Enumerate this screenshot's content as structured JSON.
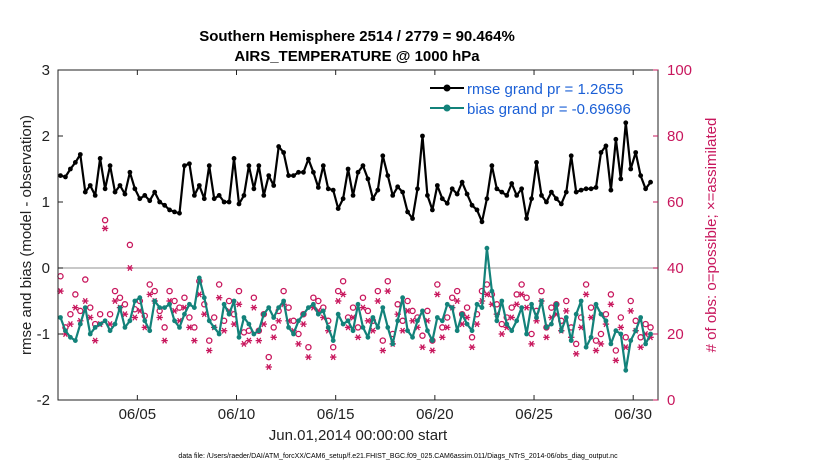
{
  "chart_data": {
    "type": "line",
    "title": "Southern Hemisphere 2514 / 2779 = 90.464%",
    "subtitle": "AIRS_TEMPERATURE @ 1000 hPa",
    "xlabel": "Jun.01,2014 00:00:00 start",
    "ylabel": "rmse and bias (model - observation)",
    "y2label": "# of obs: o=possible; ×=assimilated",
    "footnote": "data file: /Users/raeder/DAI/ATM_forcXX/CAM6_setup/f.e21.FHIST_BGC.f09_025.CAM6assim.011/Diags_NTrS_2014-06/obs_diag_output.nc",
    "xlim": [
      1.0,
      31.25
    ],
    "ylim": [
      -2,
      3
    ],
    "y2lim": [
      0,
      100
    ],
    "xticks": [
      5,
      10,
      15,
      20,
      25,
      30
    ],
    "xtick_labels": [
      "06/05",
      "06/10",
      "06/15",
      "06/20",
      "06/25",
      "06/30"
    ],
    "yticks": [
      -2,
      -1,
      0,
      1,
      2,
      3
    ],
    "ytick_labels": [
      "-2",
      "-1",
      "0",
      "1",
      "2",
      "3"
    ],
    "y2ticks": [
      0,
      20,
      40,
      60,
      80,
      100
    ],
    "y2tick_labels": [
      "0",
      "20",
      "40",
      "60",
      "80",
      "100"
    ],
    "zero_line": 0,
    "grid": false,
    "legend_position": "top-right",
    "series": [
      {
        "name": "rmse grand pr = 1.2655",
        "color": "#000000",
        "marker": "filled-circle",
        "axis": "left",
        "x": [
          1.125,
          1.375,
          1.625,
          1.875,
          2.125,
          2.375,
          2.625,
          2.875,
          3.125,
          3.375,
          3.625,
          3.875,
          4.125,
          4.375,
          4.625,
          4.875,
          5.125,
          5.375,
          5.625,
          5.875,
          6.125,
          6.375,
          6.625,
          6.875,
          7.125,
          7.375,
          7.625,
          7.875,
          8.125,
          8.375,
          8.625,
          8.875,
          9.125,
          9.375,
          9.625,
          9.875,
          10.125,
          10.375,
          10.625,
          10.875,
          11.125,
          11.375,
          11.625,
          11.875,
          12.125,
          12.375,
          12.625,
          12.875,
          13.125,
          13.375,
          13.625,
          13.875,
          14.125,
          14.375,
          14.625,
          14.875,
          15.125,
          15.375,
          15.625,
          15.875,
          16.125,
          16.375,
          16.625,
          16.875,
          17.125,
          17.375,
          17.625,
          17.875,
          18.125,
          18.375,
          18.625,
          18.875,
          19.125,
          19.375,
          19.625,
          19.875,
          20.125,
          20.375,
          20.625,
          20.875,
          21.125,
          21.375,
          21.625,
          21.875,
          22.125,
          22.375,
          22.625,
          22.875,
          23.125,
          23.375,
          23.625,
          23.875,
          24.125,
          24.375,
          24.625,
          24.875,
          25.125,
          25.375,
          25.625,
          25.875,
          26.125,
          26.375,
          26.625,
          26.875,
          27.125,
          27.375,
          27.625,
          27.875,
          28.125,
          28.375,
          28.625,
          28.875,
          29.125,
          29.375,
          29.625,
          29.875,
          30.125,
          30.375,
          30.625,
          30.875
        ],
        "values": [
          1.4,
          1.38,
          1.5,
          1.6,
          1.72,
          1.15,
          1.25,
          1.1,
          1.66,
          1.2,
          1.55,
          1.15,
          1.25,
          1.12,
          1.45,
          1.2,
          1.05,
          1.1,
          1.02,
          1.15,
          1.0,
          0.95,
          0.88,
          0.85,
          0.83,
          1.55,
          1.58,
          1.1,
          1.25,
          1.05,
          1.55,
          1.05,
          1.1,
          1.0,
          1.0,
          1.66,
          0.97,
          1.1,
          1.55,
          1.2,
          1.55,
          1.1,
          1.4,
          1.25,
          1.84,
          1.75,
          1.4,
          1.4,
          1.45,
          1.45,
          1.65,
          1.45,
          1.22,
          1.55,
          1.2,
          1.18,
          0.9,
          1.05,
          1.5,
          1.1,
          1.45,
          1.55,
          1.35,
          1.05,
          1.18,
          1.7,
          1.4,
          1.1,
          1.23,
          1.15,
          0.85,
          0.75,
          1.2,
          2.0,
          1.1,
          0.88,
          1.25,
          1.05,
          0.98,
          1.2,
          1.12,
          1.3,
          1.12,
          0.95,
          0.88,
          0.7,
          1.05,
          1.55,
          1.2,
          1.15,
          1.1,
          1.28,
          1.1,
          1.2,
          0.75,
          1.05,
          1.6,
          1.1,
          1.0,
          1.15,
          1.05,
          0.97,
          1.15,
          1.7,
          1.15,
          1.18,
          1.2,
          1.2,
          1.22,
          1.75,
          1.85,
          1.18,
          1.95,
          1.35,
          2.2,
          1.5,
          1.75,
          1.4,
          1.2,
          1.3
        ]
      },
      {
        "name": "bias grand pr = -0.69696",
        "color": "#13827a",
        "marker": "filled-circle",
        "axis": "left",
        "x": [
          1.125,
          1.375,
          1.625,
          1.875,
          2.125,
          2.375,
          2.625,
          2.875,
          3.125,
          3.375,
          3.625,
          3.875,
          4.125,
          4.375,
          4.625,
          4.875,
          5.125,
          5.375,
          5.625,
          5.875,
          6.125,
          6.375,
          6.625,
          6.875,
          7.125,
          7.375,
          7.625,
          7.875,
          8.125,
          8.375,
          8.625,
          8.875,
          9.125,
          9.375,
          9.625,
          9.875,
          10.125,
          10.375,
          10.625,
          10.875,
          11.125,
          11.375,
          11.625,
          11.875,
          12.125,
          12.375,
          12.625,
          12.875,
          13.125,
          13.375,
          13.625,
          13.875,
          14.125,
          14.375,
          14.625,
          14.875,
          15.125,
          15.375,
          15.625,
          15.875,
          16.125,
          16.375,
          16.625,
          16.875,
          17.125,
          17.375,
          17.625,
          17.875,
          18.125,
          18.375,
          18.625,
          18.875,
          19.125,
          19.375,
          19.625,
          19.875,
          20.125,
          20.375,
          20.625,
          20.875,
          21.125,
          21.375,
          21.625,
          21.875,
          22.125,
          22.375,
          22.625,
          22.875,
          23.125,
          23.375,
          23.625,
          23.875,
          24.125,
          24.375,
          24.625,
          24.875,
          25.125,
          25.375,
          25.625,
          25.875,
          26.125,
          26.375,
          26.625,
          26.875,
          27.125,
          27.375,
          27.625,
          27.875,
          28.125,
          28.375,
          28.625,
          28.875,
          29.125,
          29.375,
          29.625,
          29.875,
          30.125,
          30.375,
          30.625,
          30.875
        ],
        "values": [
          -0.75,
          -0.95,
          -1.05,
          -1.1,
          -0.85,
          -0.6,
          -1.0,
          -0.9,
          -0.85,
          -0.8,
          -0.95,
          -0.85,
          -0.6,
          -0.9,
          -0.8,
          -0.5,
          -0.45,
          -0.8,
          -0.95,
          -0.5,
          -0.6,
          -0.6,
          -0.55,
          -0.8,
          -0.9,
          -0.7,
          -0.55,
          -0.6,
          -0.15,
          -0.45,
          -0.8,
          -0.9,
          -1.0,
          -0.55,
          -0.7,
          -0.5,
          -1.05,
          -0.75,
          -0.85,
          -1.0,
          -0.95,
          -0.7,
          -0.6,
          -0.75,
          -0.6,
          -0.5,
          -0.9,
          -1.0,
          -0.8,
          -0.7,
          -0.6,
          -0.55,
          -0.7,
          -0.65,
          -0.9,
          -1.1,
          -0.7,
          -0.85,
          -0.8,
          -0.95,
          -0.55,
          -0.9,
          -1.05,
          -0.75,
          -0.9,
          -0.6,
          -0.9,
          -1.15,
          -0.8,
          -0.45,
          -0.95,
          -1.05,
          -0.8,
          -0.65,
          -0.95,
          -1.1,
          -0.75,
          -0.8,
          -0.55,
          -0.6,
          -0.95,
          -0.7,
          -0.85,
          -0.95,
          -0.55,
          -0.6,
          0.3,
          -0.35,
          -0.8,
          -0.5,
          -0.85,
          -0.95,
          -0.8,
          -0.6,
          -1.0,
          -0.55,
          -0.75,
          -0.5,
          -0.9,
          -0.85,
          -0.55,
          -0.95,
          -0.75,
          -1.1,
          -0.7,
          -0.5,
          -1.2,
          -1.05,
          -0.55,
          -0.7,
          -0.8,
          -1.15,
          -0.95,
          -1.0,
          -1.55,
          -1.1,
          -0.95,
          -0.75,
          -1.15,
          -1.0
        ]
      },
      {
        "name": "possible observations",
        "color": "#c8175d",
        "marker": "open-circle",
        "axis": "right",
        "x": [
          1.125,
          1.375,
          1.625,
          1.875,
          2.125,
          2.375,
          2.625,
          2.875,
          3.125,
          3.375,
          3.625,
          3.875,
          4.125,
          4.375,
          4.625,
          4.875,
          5.125,
          5.375,
          5.625,
          5.875,
          6.125,
          6.375,
          6.625,
          6.875,
          7.125,
          7.375,
          7.625,
          7.875,
          8.125,
          8.375,
          8.625,
          8.875,
          9.125,
          9.375,
          9.625,
          9.875,
          10.125,
          10.375,
          10.625,
          10.875,
          11.125,
          11.375,
          11.625,
          11.875,
          12.125,
          12.375,
          12.625,
          12.875,
          13.125,
          13.375,
          13.625,
          13.875,
          14.125,
          14.375,
          14.625,
          14.875,
          15.125,
          15.375,
          15.625,
          15.875,
          16.125,
          16.375,
          16.625,
          16.875,
          17.125,
          17.375,
          17.625,
          17.875,
          18.125,
          18.375,
          18.625,
          18.875,
          19.125,
          19.375,
          19.625,
          19.875,
          20.125,
          20.375,
          20.625,
          20.875,
          21.125,
          21.375,
          21.625,
          21.875,
          22.125,
          22.375,
          22.625,
          22.875,
          23.125,
          23.375,
          23.625,
          23.875,
          24.125,
          24.375,
          24.625,
          24.875,
          25.125,
          25.375,
          25.625,
          25.875,
          26.125,
          26.375,
          26.625,
          26.875,
          27.125,
          27.375,
          27.625,
          27.875,
          28.125,
          28.375,
          28.625,
          28.875,
          29.125,
          29.375,
          29.625,
          29.875,
          30.125,
          30.375,
          30.625,
          30.875
        ],
        "values": [
          37.5,
          22,
          26,
          32,
          27,
          36.5,
          28,
          23,
          26,
          54.5,
          26,
          33,
          31,
          29,
          47,
          27.5,
          30,
          25.5,
          35,
          33,
          27,
          22,
          33,
          30,
          28,
          31,
          25,
          22,
          36,
          29,
          18,
          25,
          35,
          24,
          30,
          26,
          33,
          20.5,
          21,
          31,
          21,
          26,
          13,
          22,
          27,
          33,
          28,
          24,
          20,
          26,
          16,
          31,
          30,
          28,
          24,
          16,
          33,
          36,
          25,
          28,
          22,
          31,
          27,
          24,
          33,
          18,
          36,
          20,
          29,
          24,
          30,
          27,
          25,
          19.5,
          27,
          18,
          35,
          22,
          25,
          31,
          33,
          26,
          28,
          19,
          26,
          33,
          35,
          32,
          29,
          23,
          25,
          28,
          32,
          35,
          31,
          20,
          27,
          33,
          22,
          28,
          29,
          24,
          30,
          22,
          17,
          25,
          35,
          28,
          18,
          20,
          26,
          32,
          15,
          25,
          19,
          30,
          24,
          19,
          23,
          22
        ]
      },
      {
        "name": "assimilated observations",
        "color": "#c8175d",
        "marker": "asterisk",
        "axis": "right",
        "x": [
          1.125,
          1.375,
          1.625,
          1.875,
          2.125,
          2.375,
          2.625,
          2.875,
          3.125,
          3.375,
          3.625,
          3.875,
          4.125,
          4.375,
          4.625,
          4.875,
          5.125,
          5.375,
          5.625,
          5.875,
          6.125,
          6.375,
          6.625,
          6.875,
          7.125,
          7.375,
          7.625,
          7.875,
          8.125,
          8.375,
          8.625,
          8.875,
          9.125,
          9.375,
          9.625,
          9.875,
          10.125,
          10.375,
          10.625,
          10.875,
          11.125,
          11.375,
          11.625,
          11.875,
          12.125,
          12.375,
          12.625,
          12.875,
          13.125,
          13.375,
          13.625,
          13.875,
          14.125,
          14.375,
          14.625,
          14.875,
          15.125,
          15.375,
          15.625,
          15.875,
          16.125,
          16.375,
          16.625,
          16.875,
          17.125,
          17.375,
          17.625,
          17.875,
          18.125,
          18.375,
          18.625,
          18.875,
          19.125,
          19.375,
          19.625,
          19.875,
          20.125,
          20.375,
          20.625,
          20.875,
          21.125,
          21.375,
          21.625,
          21.875,
          22.125,
          22.375,
          22.625,
          22.875,
          23.125,
          23.375,
          23.625,
          23.875,
          24.125,
          24.375,
          24.625,
          24.875,
          25.125,
          25.375,
          25.625,
          25.875,
          26.125,
          26.375,
          26.625,
          26.875,
          27.125,
          27.375,
          27.625,
          27.875,
          28.125,
          28.375,
          28.625,
          28.875,
          29.125,
          29.375,
          29.625,
          29.875,
          30.125,
          30.375,
          30.625,
          30.875
        ],
        "values": [
          33,
          20,
          23,
          28,
          24,
          30,
          25,
          18,
          23,
          52,
          23,
          30,
          28,
          26,
          40,
          25,
          27,
          22,
          32,
          30,
          25,
          18,
          30,
          27,
          24,
          28,
          22,
          18,
          32,
          26,
          15,
          22,
          31,
          21,
          27,
          23,
          29,
          17,
          18,
          28,
          18,
          23,
          10,
          19,
          24,
          29,
          24,
          21,
          17,
          23,
          13,
          28,
          27,
          25,
          21,
          13,
          30,
          32,
          22,
          25,
          19,
          28,
          24,
          21,
          30,
          15,
          33,
          17,
          26,
          21,
          27,
          24,
          22,
          16,
          24,
          15,
          32,
          19,
          22,
          28,
          30,
          23,
          25,
          16,
          23,
          30,
          32,
          29,
          26,
          20,
          22,
          25,
          29,
          32,
          28,
          17,
          24,
          30,
          19,
          25,
          26,
          21,
          27,
          19,
          14,
          22,
          32,
          25,
          15,
          17,
          23,
          29,
          12,
          22,
          16,
          27,
          21,
          16,
          20,
          19
        ]
      }
    ]
  }
}
